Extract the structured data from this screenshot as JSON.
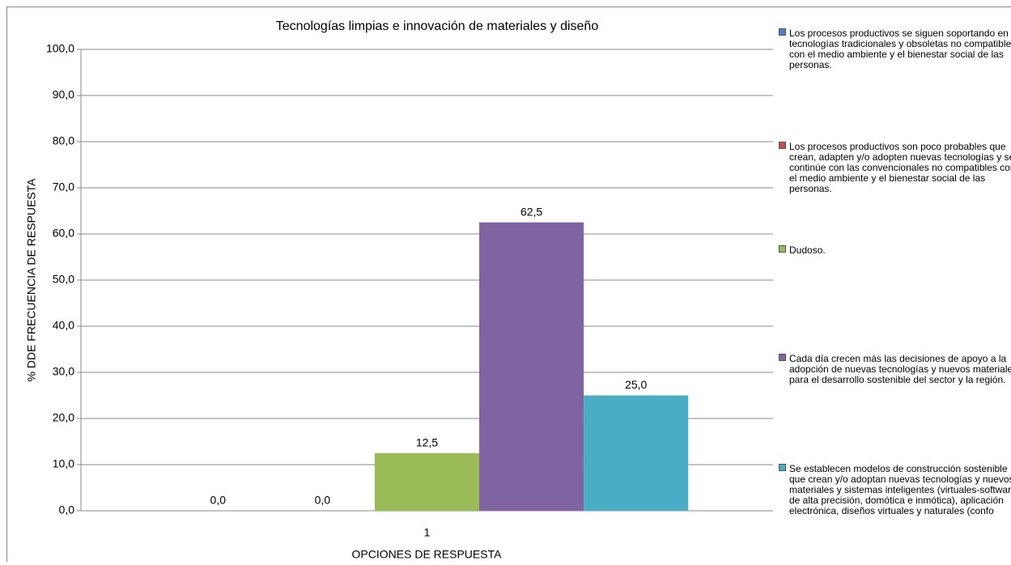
{
  "chart_data": {
    "type": "bar",
    "title": "Tecnologías limpias e innovación de materiales y diseño",
    "xlabel": "OPCIONES DE RESPUESTA",
    "ylabel": "% DDE FRECUENCIA DE RESPUESTA",
    "categories": [
      "1"
    ],
    "series": [
      {
        "name": "Los procesos productivos se siguen soportando en tecnologías tradicionales y obsoletas no compatibles con el medio ambiente y el bienestar social de las personas.",
        "color": "#4f81bd",
        "values": [
          0
        ],
        "value_labels": [
          "0,0"
        ]
      },
      {
        "name": "Los procesos productivos son poco probables que crean, adapten y/o adopten nuevas tecnologías y se continúe con las convencionales no compatibles con el medio ambiente y el bienestar social de las personas.",
        "color": "#c0504d",
        "values": [
          0
        ],
        "value_labels": [
          "0,0"
        ]
      },
      {
        "name": "Dudoso.",
        "color": "#9bbb59",
        "values": [
          12.5
        ],
        "value_labels": [
          "12,5"
        ]
      },
      {
        "name": "Cada día crecen más las decisiones de apoyo a la adopción de nuevas tecnologías y nuevos materiales para el desarrollo sostenible del sector y la región.",
        "color": "#8064a2",
        "values": [
          62.5
        ],
        "value_labels": [
          "62,5"
        ]
      },
      {
        "name": "Se establecen modelos de construcción sostenible que crean y/o adoptan nuevas tecnologías y nuevos materiales y sistemas inteligentes (virtuales-software de alta precisión, domótica e inmótica), aplicación electrónica, diseños virtuales y naturales (confo",
        "color": "#4bacc6",
        "values": [
          25
        ],
        "value_labels": [
          "25,0"
        ]
      }
    ],
    "ylim": [
      0,
      100
    ],
    "yticks": [
      {
        "value": 0,
        "label": "0,0"
      },
      {
        "value": 10,
        "label": "10,0"
      },
      {
        "value": 20,
        "label": "20,0"
      },
      {
        "value": 30,
        "label": "30,0"
      },
      {
        "value": 40,
        "label": "40,0"
      },
      {
        "value": 50,
        "label": "50,0"
      },
      {
        "value": 60,
        "label": "60,0"
      },
      {
        "value": 70,
        "label": "70,0"
      },
      {
        "value": 80,
        "label": "80,0"
      },
      {
        "value": 90,
        "label": "90,0"
      },
      {
        "value": 100,
        "label": "100,0"
      }
    ],
    "grid": true
  }
}
